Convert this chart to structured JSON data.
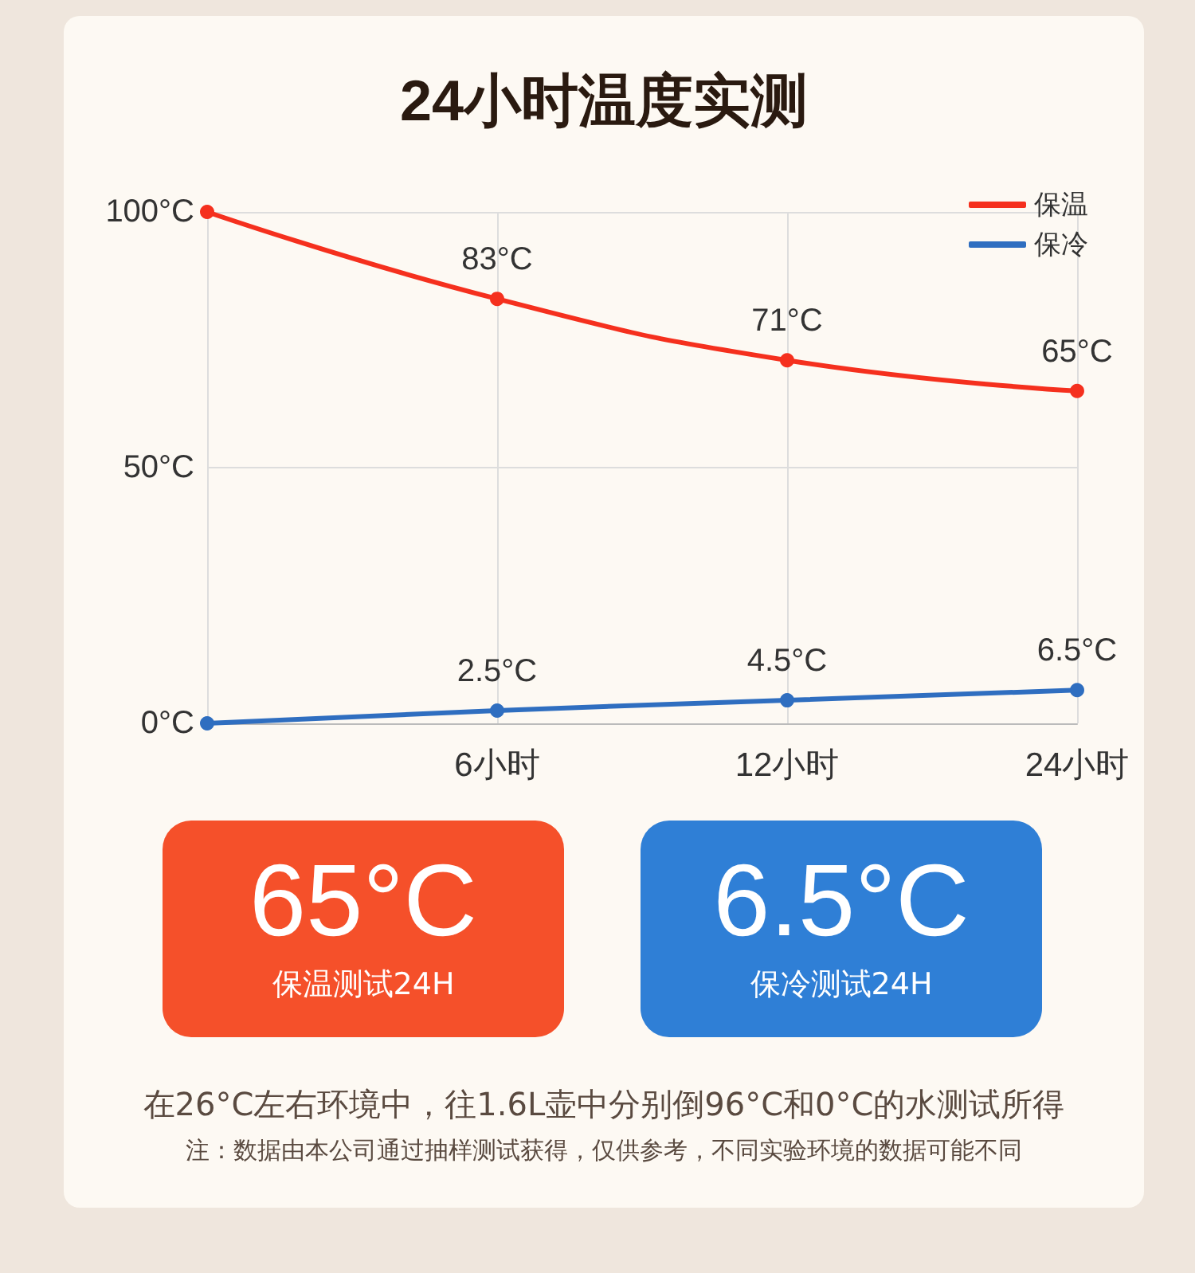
{
  "chart_data": [
    {
      "type": "line",
      "title": "24小时温度实测",
      "categories": [
        null,
        "6小时",
        "12小时",
        "24小时"
      ],
      "series": [
        {
          "name": "保温",
          "color": "#f5301e",
          "values": [
            100,
            83,
            71,
            65
          ],
          "value_labels": [
            null,
            "83°C",
            "71°C",
            "65°C"
          ]
        },
        {
          "name": "保冷",
          "color": "#2f6ec0",
          "values": [
            0,
            2.5,
            4.5,
            6.5
          ],
          "value_labels": [
            null,
            "2.5°C",
            "4.5°C",
            "6.5°C"
          ]
        }
      ],
      "ylim": [
        0,
        100
      ],
      "yticks": [
        {
          "value": 0,
          "label": "0°C"
        },
        {
          "value": 50,
          "label": "50°C"
        },
        {
          "value": 100,
          "label": "100°C"
        }
      ],
      "grid": true,
      "legend": "top right",
      "marker": "circle",
      "annotations": [
        "在26°C左右环境中，往1.6L壶中分别倒96°C和0°C的水测试所得",
        "注：数据由本公司通过抽样测试获得，仅供参考，不同实验环境的数据可能不同"
      ]
    },
    {
      "type": "other",
      "annotations": [
        "65°C",
        "保温测试24H",
        "6.5°C",
        "保冷测试24H"
      ],
      "colors": [
        "#f5502a",
        "#2f7fd6"
      ]
    }
  ]
}
